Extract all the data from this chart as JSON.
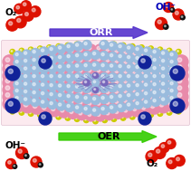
{
  "fig_width": 2.11,
  "fig_height": 1.89,
  "dpi": 100,
  "bg_color": "#ffffff",
  "oer_label": "OER",
  "orr_label": "ORR",
  "o2_label": "O₂",
  "oh_label": "OH⁻",
  "arrow_oer_color": "#33cc00",
  "arrow_orr_color": "#5533cc",
  "label_black": "#000000",
  "label_blue": "#0000cc",
  "o2_color": "#dd1100",
  "oh_red_color": "#dd1100",
  "oh_black_color": "#111111",
  "pink_color": "#e88aaa",
  "lightblue_color": "#99bbdd",
  "darkblue_color": "#112299",
  "yellow_color": "#cccc00",
  "center_violet": "#7766bb",
  "slab_bg": "#fce8ee"
}
